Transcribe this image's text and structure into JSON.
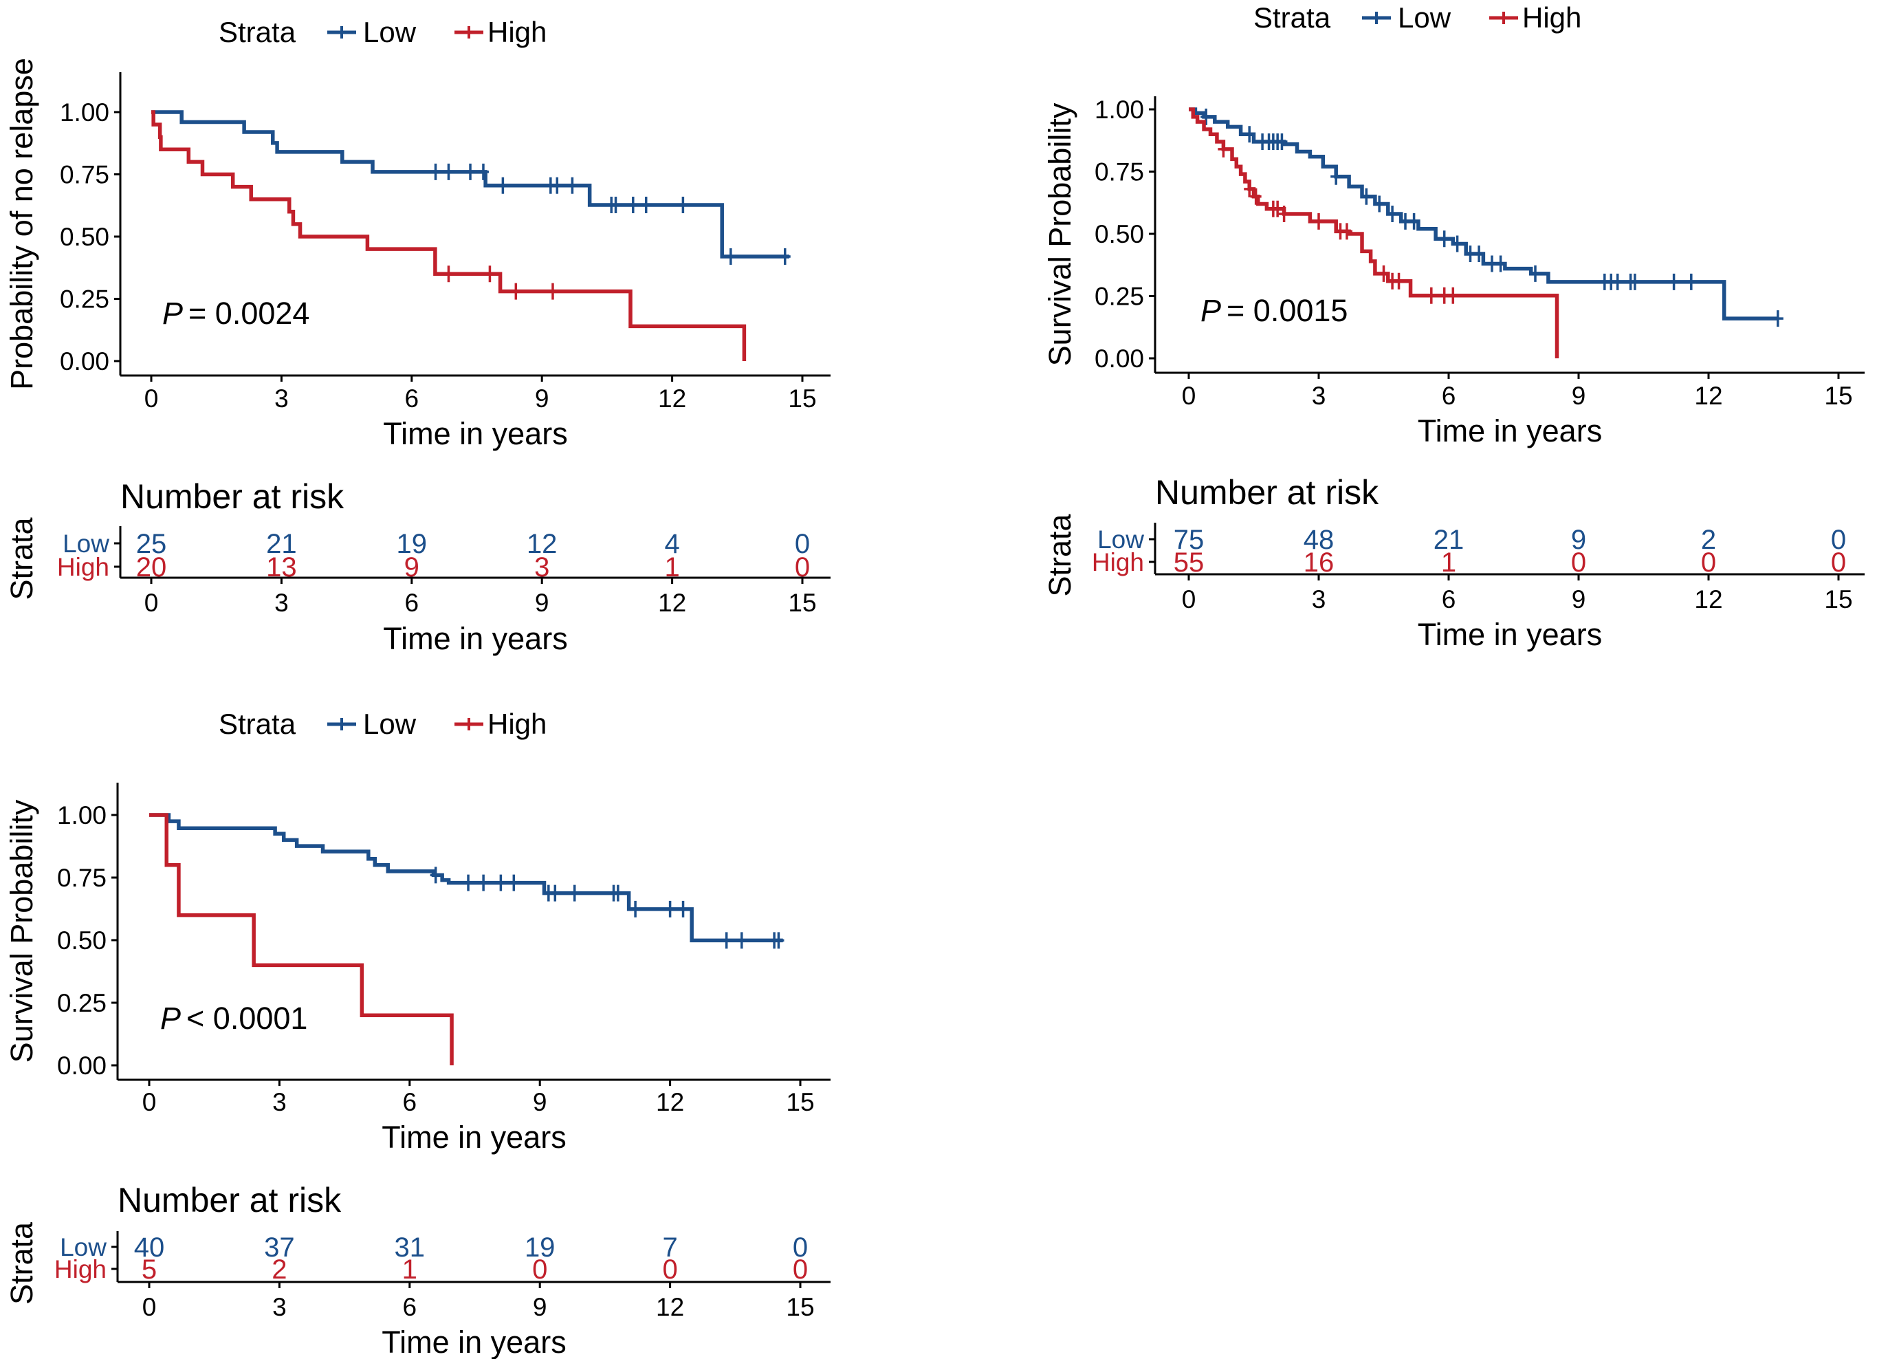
{
  "colors": {
    "low": "#1c4f8b",
    "high": "#c1202b",
    "axis": "#000000"
  },
  "chart_data": [
    {
      "type": "line",
      "subtype": "kaplan-meier step",
      "legend_title": "Strata",
      "legend_placement": "top",
      "xlabel": "Time in years",
      "ylabel": "Probability of no relapse",
      "xlim": [
        0,
        15
      ],
      "ylim": [
        0,
        1
      ],
      "xticks": [
        "0",
        "3",
        "6",
        "9",
        "12",
        "15"
      ],
      "yticks": [
        "0.00",
        "0.25",
        "0.50",
        "0.75",
        "1.00"
      ],
      "grid": false,
      "p_value": "= 0.0024",
      "series": [
        {
          "name": "Low",
          "end": 14.7,
          "steps": [
            [
              0.7,
              0.96
            ],
            [
              2.14,
              0.92
            ],
            [
              2.8,
              0.876
            ],
            [
              2.9,
              0.84
            ],
            [
              4.4,
              0.8
            ],
            [
              5.1,
              0.76
            ],
            [
              7.7,
              0.705
            ],
            [
              10.1,
              0.627
            ],
            [
              13.15,
              0.42
            ]
          ],
          "censored": [
            6.55,
            6.85,
            7.35,
            7.65,
            8.1,
            9.2,
            9.35,
            9.7,
            10.6,
            10.7,
            11.1,
            11.4,
            12.25,
            13.35,
            14.6
          ]
        },
        {
          "name": "High",
          "end": 13.66,
          "steps": [
            [
              0.05,
              0.95
            ],
            [
              0.2,
              0.9
            ],
            [
              0.22,
              0.85
            ],
            [
              0.86,
              0.8
            ],
            [
              1.18,
              0.75
            ],
            [
              1.88,
              0.7
            ],
            [
              2.3,
              0.65
            ],
            [
              3.18,
              0.6
            ],
            [
              3.27,
              0.55
            ],
            [
              3.43,
              0.5
            ],
            [
              4.98,
              0.45
            ],
            [
              6.54,
              0.35
            ],
            [
              8.04,
              0.28
            ],
            [
              11.04,
              0.14
            ],
            [
              13.66,
              0
            ]
          ],
          "censored": [
            6.85,
            7.8,
            8.4,
            9.25
          ]
        }
      ],
      "risk_table": {
        "title": "Number at risk",
        "ylabel": "Strata",
        "xlabel": "Time in years",
        "rows": [
          {
            "name": "Low",
            "values": [
              "25",
              "21",
              "19",
              "12",
              "4",
              "0"
            ]
          },
          {
            "name": "High",
            "values": [
              "20",
              "13",
              "9",
              "3",
              "1",
              "0"
            ]
          }
        ]
      }
    },
    {
      "type": "line",
      "subtype": "kaplan-meier step",
      "legend_title": "Strata",
      "legend_placement": "top",
      "xlabel": "Time in years",
      "ylabel": "Survival Probability",
      "xlim": [
        0,
        15
      ],
      "ylim": [
        0,
        1
      ],
      "xticks": [
        "0",
        "3",
        "6",
        "9",
        "12",
        "15"
      ],
      "yticks": [
        "0.00",
        "0.25",
        "0.50",
        "0.75",
        "1.00"
      ],
      "grid": false,
      "p_value": "= 0.0015",
      "series": [
        {
          "name": "Low",
          "end": 13.6,
          "steps": [
            [
              0.15,
              0.985
            ],
            [
              0.35,
              0.97
            ],
            [
              0.6,
              0.95
            ],
            [
              0.9,
              0.93
            ],
            [
              1.2,
              0.9
            ],
            [
              1.5,
              0.87
            ],
            [
              2.2,
              0.86
            ],
            [
              2.5,
              0.83
            ],
            [
              2.8,
              0.81
            ],
            [
              3.1,
              0.77
            ],
            [
              3.4,
              0.73
            ],
            [
              3.7,
              0.69
            ],
            [
              4.0,
              0.65
            ],
            [
              4.3,
              0.62
            ],
            [
              4.6,
              0.58
            ],
            [
              4.9,
              0.55
            ],
            [
              5.3,
              0.52
            ],
            [
              5.7,
              0.48
            ],
            [
              6.1,
              0.46
            ],
            [
              6.4,
              0.42
            ],
            [
              6.8,
              0.38
            ],
            [
              7.3,
              0.36
            ],
            [
              7.9,
              0.34
            ],
            [
              8.3,
              0.307
            ],
            [
              12.36,
              0.16
            ]
          ],
          "censored": [
            0.4,
            1.4,
            1.7,
            1.85,
            1.95,
            2.05,
            2.15,
            3.4,
            4.1,
            4.4,
            4.7,
            5.0,
            5.2,
            5.9,
            6.2,
            6.5,
            6.7,
            7.0,
            7.2,
            8.0,
            9.6,
            9.75,
            9.9,
            10.2,
            10.3,
            11.2,
            11.6,
            13.6
          ]
        },
        {
          "name": "High",
          "end": 8.5,
          "steps": [
            [
              0.1,
              0.97
            ],
            [
              0.2,
              0.95
            ],
            [
              0.35,
              0.92
            ],
            [
              0.5,
              0.9
            ],
            [
              0.65,
              0.87
            ],
            [
              0.8,
              0.84
            ],
            [
              1.0,
              0.8
            ],
            [
              1.1,
              0.77
            ],
            [
              1.2,
              0.74
            ],
            [
              1.3,
              0.71
            ],
            [
              1.4,
              0.68
            ],
            [
              1.5,
              0.65
            ],
            [
              1.6,
              0.62
            ],
            [
              1.8,
              0.6
            ],
            [
              2.2,
              0.58
            ],
            [
              2.8,
              0.55
            ],
            [
              3.4,
              0.51
            ],
            [
              3.7,
              0.5
            ],
            [
              4.0,
              0.43
            ],
            [
              4.2,
              0.39
            ],
            [
              4.3,
              0.34
            ],
            [
              4.6,
              0.31
            ],
            [
              5.12,
              0.252
            ],
            [
              8.5,
              0
            ]
          ],
          "censored": [
            0.8,
            1.4,
            1.55,
            1.95,
            2.05,
            2.2,
            3.0,
            3.5,
            3.65,
            4.5,
            4.7,
            4.85,
            5.6,
            5.9,
            6.1
          ]
        }
      ],
      "risk_table": {
        "title": "Number at risk",
        "ylabel": "Strata",
        "xlabel": "Time in years",
        "rows": [
          {
            "name": "Low",
            "values": [
              "75",
              "48",
              "21",
              "9",
              "2",
              "0"
            ]
          },
          {
            "name": "High",
            "values": [
              "55",
              "16",
              "1",
              "0",
              "0",
              "0"
            ]
          }
        ]
      }
    },
    {
      "type": "line",
      "subtype": "kaplan-meier step",
      "legend_title": "Strata",
      "legend_placement": "top",
      "xlabel": "Time in years",
      "ylabel": "Survival Probability",
      "xlim": [
        0,
        15
      ],
      "ylim": [
        0,
        1
      ],
      "xticks": [
        "0",
        "3",
        "6",
        "9",
        "12",
        "15"
      ],
      "yticks": [
        "0.00",
        "0.25",
        "0.50",
        "0.75",
        "1.00"
      ],
      "grid": false,
      "p_value": "< 0.0001",
      "series": [
        {
          "name": "Low",
          "end": 14.6,
          "steps": [
            [
              0.45,
              0.975
            ],
            [
              0.68,
              0.947
            ],
            [
              2.9,
              0.925
            ],
            [
              3.1,
              0.9
            ],
            [
              3.4,
              0.876
            ],
            [
              4.0,
              0.854
            ],
            [
              5.05,
              0.825
            ],
            [
              5.2,
              0.8
            ],
            [
              5.5,
              0.775
            ],
            [
              6.55,
              0.76
            ],
            [
              6.75,
              0.74
            ],
            [
              6.9,
              0.729
            ],
            [
              9.1,
              0.688
            ],
            [
              11.05,
              0.624
            ],
            [
              12.5,
              0.499
            ]
          ],
          "censored": [
            6.6,
            7.35,
            7.7,
            8.1,
            8.4,
            9.2,
            9.35,
            9.8,
            10.7,
            10.8,
            11.2,
            12.0,
            12.3,
            13.3,
            13.65,
            14.4,
            14.5
          ]
        },
        {
          "name": "High",
          "end": 6.97,
          "steps": [
            [
              0.4,
              0.8
            ],
            [
              0.68,
              0.6
            ],
            [
              2.41,
              0.4
            ],
            [
              4.9,
              0.2
            ],
            [
              6.97,
              0
            ]
          ],
          "censored": []
        }
      ],
      "risk_table": {
        "title": "Number at risk",
        "ylabel": "Strata",
        "xlabel": "Time in years",
        "rows": [
          {
            "name": "Low",
            "values": [
              "40",
              "37",
              "31",
              "19",
              "7",
              "0"
            ]
          },
          {
            "name": "High",
            "values": [
              "5",
              "2",
              "1",
              "0",
              "0",
              "0"
            ]
          }
        ]
      }
    }
  ]
}
